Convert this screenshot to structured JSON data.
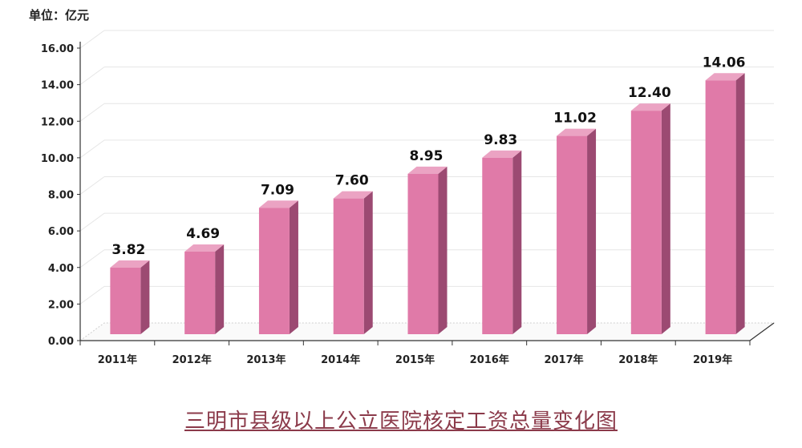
{
  "chart_data": {
    "type": "bar",
    "unit_label": "单位：亿元",
    "title": "三明市县级以上公立医院核定工资总量变化图",
    "categories": [
      "2011年",
      "2012年",
      "2013年",
      "2014年",
      "2015年",
      "2016年",
      "2017年",
      "2018年",
      "2019年"
    ],
    "values": [
      3.82,
      4.69,
      7.09,
      7.6,
      8.95,
      9.83,
      11.02,
      12.4,
      14.06
    ],
    "data_labels": [
      "3.82",
      "4.69",
      "7.09",
      "7.60",
      "8.95",
      "9.83",
      "11.02",
      "12.40",
      "14.06"
    ],
    "yticks": [
      "0.00",
      "2.00",
      "4.00",
      "6.00",
      "8.00",
      "10.00",
      "12.00",
      "14.00",
      "16.00"
    ],
    "ylim": [
      0,
      16
    ],
    "grid": true,
    "colors": {
      "bar_front": "#e07aa8",
      "bar_side": "#9c4a72",
      "bar_top": "#eba3c3",
      "grid": "#e6e6e6"
    }
  }
}
